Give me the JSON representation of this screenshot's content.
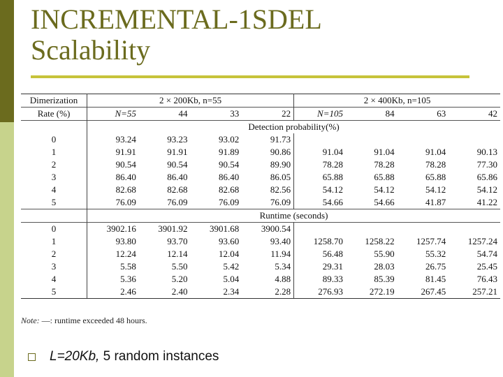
{
  "slide": {
    "title_line1": "INCREMENTAL-1SDEL",
    "title_line2": "Scalability"
  },
  "table": {
    "hdr_col1_line1": "Dimerization",
    "hdr_col1_line2": "Rate (%)",
    "group1": "2 × 200Kb, n=55",
    "group2": "2 × 400Kb, n=105",
    "sub1": [
      "N=55",
      "44",
      "33",
      "22"
    ],
    "sub2": [
      "N=105",
      "84",
      "63",
      "42"
    ],
    "section1_label": "Detection probability(%)",
    "section2_label": "Runtime (seconds)",
    "detection_rows": [
      [
        "0",
        "93.24",
        "93.23",
        "93.02",
        "91.73",
        "",
        "",
        "",
        ""
      ],
      [
        "1",
        "91.91",
        "91.91",
        "91.89",
        "90.86",
        "91.04",
        "91.04",
        "91.04",
        "90.13"
      ],
      [
        "2",
        "90.54",
        "90.54",
        "90.54",
        "89.90",
        "78.28",
        "78.28",
        "78.28",
        "77.30"
      ],
      [
        "3",
        "86.40",
        "86.40",
        "86.40",
        "86.05",
        "65.88",
        "65.88",
        "65.88",
        "65.86"
      ],
      [
        "4",
        "82.68",
        "82.68",
        "82.68",
        "82.56",
        "54.12",
        "54.12",
        "54.12",
        "54.12"
      ],
      [
        "5",
        "76.09",
        "76.09",
        "76.09",
        "76.09",
        "54.66",
        "54.66",
        "41.87",
        "41.22"
      ]
    ],
    "runtime_rows": [
      [
        "0",
        "3902.16",
        "3901.92",
        "3901.68",
        "3900.54",
        "",
        "",
        "",
        ""
      ],
      [
        "1",
        "93.80",
        "93.70",
        "93.60",
        "93.40",
        "1258.70",
        "1258.22",
        "1257.74",
        "1257.24"
      ],
      [
        "2",
        "12.24",
        "12.14",
        "12.04",
        "11.94",
        "56.48",
        "55.90",
        "55.32",
        "54.74"
      ],
      [
        "3",
        "5.58",
        "5.50",
        "5.42",
        "5.34",
        "29.31",
        "28.03",
        "26.75",
        "25.45"
      ],
      [
        "4",
        "5.36",
        "5.20",
        "5.04",
        "4.88",
        "89.33",
        "85.39",
        "81.45",
        "76.43"
      ],
      [
        "5",
        "2.46",
        "2.40",
        "2.34",
        "2.28",
        "276.93",
        "272.19",
        "267.45",
        "257.21"
      ]
    ],
    "note_label": "Note:",
    "note_text": " —: runtime exceeded 48 hours."
  },
  "bullet": {
    "text_italic": "L=20Kb,",
    "text_rest": " 5 random instances"
  },
  "colors": {
    "accent_dark": "#6b6b1e",
    "accent_light": "#c7d38c",
    "rule": "#c7c33a"
  },
  "icons": [
    "bullet-square-icon"
  ]
}
